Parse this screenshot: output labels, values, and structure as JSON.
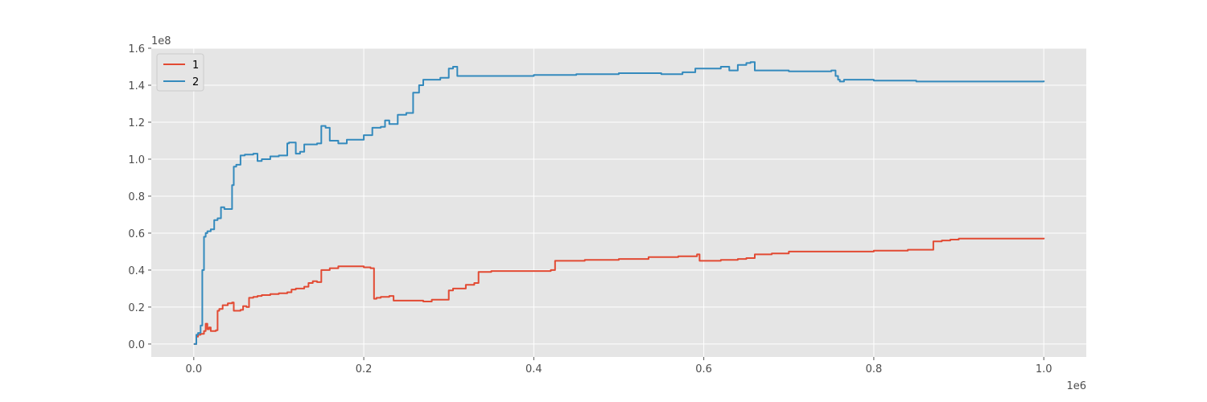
{
  "chart_data": {
    "type": "line",
    "title": "",
    "xlabel": "",
    "ylabel": "",
    "xlim": [
      -50000,
      1050000
    ],
    "ylim": [
      -7000000,
      160000000
    ],
    "x_offset_text": "1e6",
    "y_offset_text": "1e8",
    "x_ticks": [
      0,
      200000,
      400000,
      600000,
      800000,
      1000000
    ],
    "x_tick_labels": [
      "0.0",
      "0.2",
      "0.4",
      "0.6",
      "0.8",
      "1.0"
    ],
    "y_ticks": [
      0,
      20000000,
      40000000,
      60000000,
      80000000,
      100000000,
      120000000,
      140000000,
      160000000
    ],
    "y_tick_labels": [
      "0.0",
      "0.2",
      "0.4",
      "0.6",
      "0.8",
      "1.0",
      "1.2",
      "1.4",
      "1.6"
    ],
    "grid": true,
    "legend_position": "top-left",
    "colors": {
      "plot_bg": "#e5e5e5",
      "grid": "#ffffff",
      "tick": "#555555",
      "legend_bg": "#e5e5e5",
      "legend_border": "#cccccc"
    },
    "series": [
      {
        "name": "1",
        "color": "#e24a33",
        "x": [
          0,
          3000,
          5000,
          8000,
          12000,
          14000,
          16000,
          18000,
          20000,
          22000,
          26000,
          28000,
          30000,
          34000,
          40000,
          45000,
          47000,
          55000,
          58000,
          62000,
          65000,
          70000,
          75000,
          80000,
          90000,
          100000,
          110000,
          115000,
          120000,
          130000,
          135000,
          140000,
          145000,
          150000,
          160000,
          170000,
          190000,
          200000,
          208000,
          212000,
          215000,
          220000,
          230000,
          235000,
          250000,
          270000,
          280000,
          295000,
          300000,
          305000,
          320000,
          330000,
          335000,
          350000,
          400000,
          420000,
          425000,
          460000,
          500000,
          535000,
          570000,
          592000,
          595000,
          600000,
          620000,
          640000,
          650000,
          660000,
          680000,
          700000,
          750000,
          780000,
          800000,
          840000,
          865000,
          870000,
          880000,
          890000,
          900000,
          950000,
          1000000
        ],
        "y": [
          0,
          4000000,
          5000000,
          5500000,
          7000000,
          11000000,
          8000000,
          9000000,
          7000000,
          7000000,
          7500000,
          18000000,
          19000000,
          21000000,
          22000000,
          22500000,
          18000000,
          18500000,
          20500000,
          20000000,
          25000000,
          25500000,
          26000000,
          26500000,
          27000000,
          27500000,
          28000000,
          29500000,
          30000000,
          31000000,
          33000000,
          34000000,
          33500000,
          40000000,
          41000000,
          42000000,
          42000000,
          41500000,
          41000000,
          24500000,
          25000000,
          25500000,
          26000000,
          23500000,
          23500000,
          23000000,
          24000000,
          24000000,
          29000000,
          30000000,
          32000000,
          33000000,
          39000000,
          39500000,
          39500000,
          40000000,
          45000000,
          45500000,
          46000000,
          47000000,
          47500000,
          48500000,
          45000000,
          45000000,
          45500000,
          46000000,
          46500000,
          48500000,
          49000000,
          50000000,
          50000000,
          50000000,
          50500000,
          51000000,
          51000000,
          55500000,
          56000000,
          56500000,
          57000000,
          57000000,
          57500000
        ]
      },
      {
        "name": "2",
        "color": "#348abd",
        "x": [
          0,
          3000,
          5000,
          8000,
          10000,
          12000,
          14000,
          16000,
          20000,
          24000,
          28000,
          32000,
          36000,
          40000,
          45000,
          47000,
          50000,
          55000,
          60000,
          70000,
          75000,
          80000,
          90000,
          100000,
          110000,
          112000,
          120000,
          125000,
          130000,
          145000,
          150000,
          155000,
          160000,
          170000,
          180000,
          195000,
          200000,
          210000,
          220000,
          225000,
          230000,
          240000,
          250000,
          258000,
          265000,
          270000,
          290000,
          300000,
          305000,
          310000,
          350000,
          400000,
          450000,
          500000,
          550000,
          575000,
          590000,
          620000,
          630000,
          640000,
          650000,
          655000,
          660000,
          700000,
          750000,
          755000,
          758000,
          760000,
          765000,
          780000,
          800000,
          840000,
          850000,
          900000,
          950000,
          1000000
        ],
        "y": [
          0,
          5000000,
          6000000,
          10000000,
          40000000,
          58000000,
          60000000,
          61000000,
          62000000,
          67000000,
          68000000,
          74000000,
          73000000,
          73000000,
          86000000,
          96000000,
          97000000,
          102000000,
          102500000,
          103000000,
          99000000,
          100000000,
          101500000,
          102000000,
          108500000,
          109000000,
          103000000,
          104000000,
          108000000,
          108500000,
          118000000,
          117000000,
          110000000,
          108500000,
          110500000,
          110500000,
          113000000,
          117000000,
          117500000,
          121000000,
          119000000,
          124000000,
          125000000,
          136000000,
          140000000,
          143000000,
          144000000,
          149000000,
          150000000,
          145000000,
          145000000,
          145500000,
          146000000,
          146500000,
          146000000,
          147000000,
          149000000,
          150000000,
          148000000,
          151000000,
          152000000,
          152500000,
          148000000,
          147500000,
          148000000,
          145000000,
          143000000,
          142000000,
          143000000,
          143000000,
          142500000,
          142500000,
          142000000,
          142000000,
          142000000,
          142500000
        ]
      }
    ]
  }
}
